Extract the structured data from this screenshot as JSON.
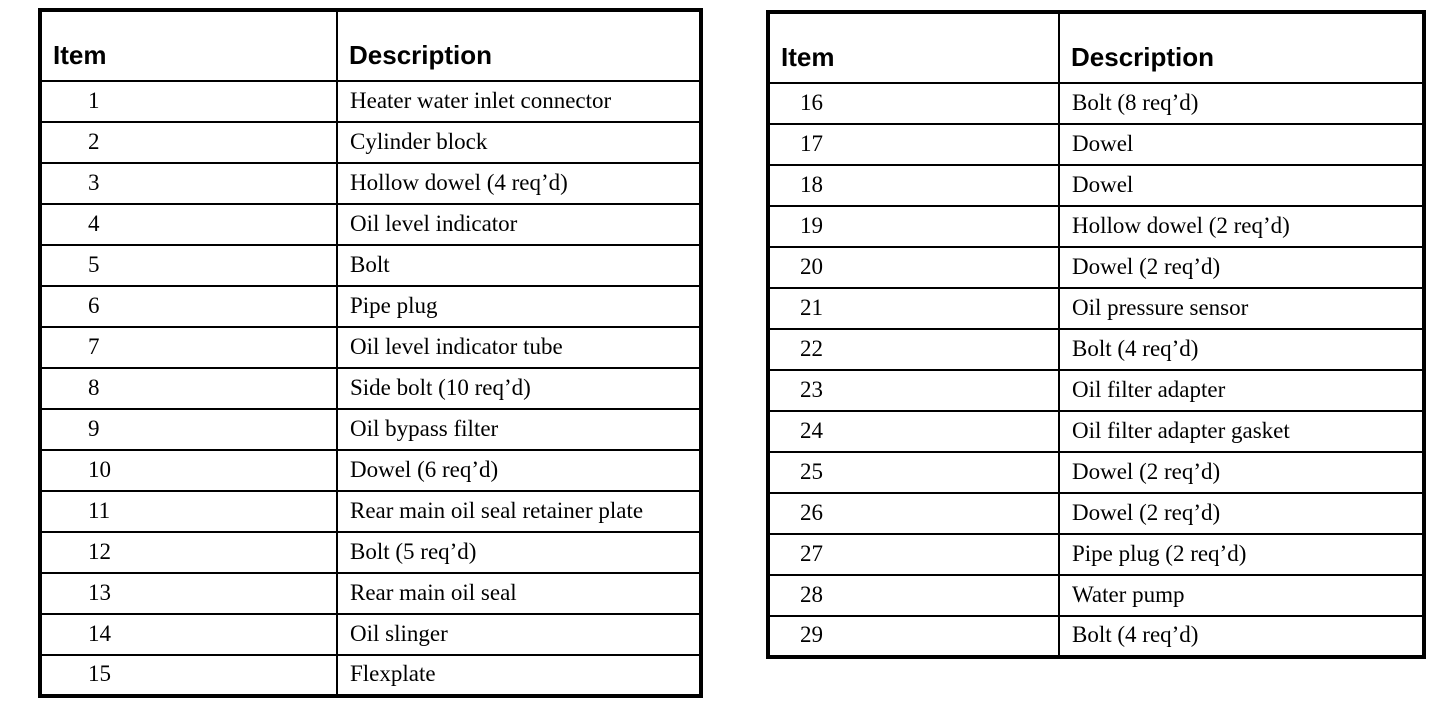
{
  "style": {
    "paper_color": "#ffffff",
    "ink_color": "#000000"
  },
  "tables": [
    {
      "name": "parts-list-items-1-15",
      "headers": [
        "Item",
        "Description"
      ],
      "rows": [
        [
          "1",
          "Heater water inlet connector"
        ],
        [
          "2",
          "Cylinder block"
        ],
        [
          "3",
          "Hollow dowel (4 req’d)"
        ],
        [
          "4",
          "Oil level indicator"
        ],
        [
          "5",
          "Bolt"
        ],
        [
          "6",
          "Pipe plug"
        ],
        [
          "7",
          "Oil level indicator tube"
        ],
        [
          "8",
          "Side bolt (10 req’d)"
        ],
        [
          "9",
          "Oil bypass filter"
        ],
        [
          "10",
          "Dowel (6 req’d)"
        ],
        [
          "11",
          "Rear main oil seal retainer plate"
        ],
        [
          "12",
          "Bolt (5 req’d)"
        ],
        [
          "13",
          "Rear main oil seal"
        ],
        [
          "14",
          "Oil slinger"
        ],
        [
          "15",
          "Flexplate"
        ]
      ]
    },
    {
      "name": "parts-list-items-16-29",
      "headers": [
        "Item",
        "Description"
      ],
      "rows": [
        [
          "16",
          "Bolt (8 req’d)"
        ],
        [
          "17",
          "Dowel"
        ],
        [
          "18",
          "Dowel"
        ],
        [
          "19",
          "Hollow dowel (2 req’d)"
        ],
        [
          "20",
          "Dowel (2 req’d)"
        ],
        [
          "21",
          "Oil pressure sensor"
        ],
        [
          "22",
          "Bolt (4 req’d)"
        ],
        [
          "23",
          "Oil filter adapter"
        ],
        [
          "24",
          "Oil filter adapter gasket"
        ],
        [
          "25",
          "Dowel (2 req’d)"
        ],
        [
          "26",
          "Dowel (2 req’d)"
        ],
        [
          "27",
          "Pipe plug (2 req’d)"
        ],
        [
          "28",
          "Water pump"
        ],
        [
          "29",
          "Bolt (4 req’d)"
        ]
      ]
    }
  ]
}
